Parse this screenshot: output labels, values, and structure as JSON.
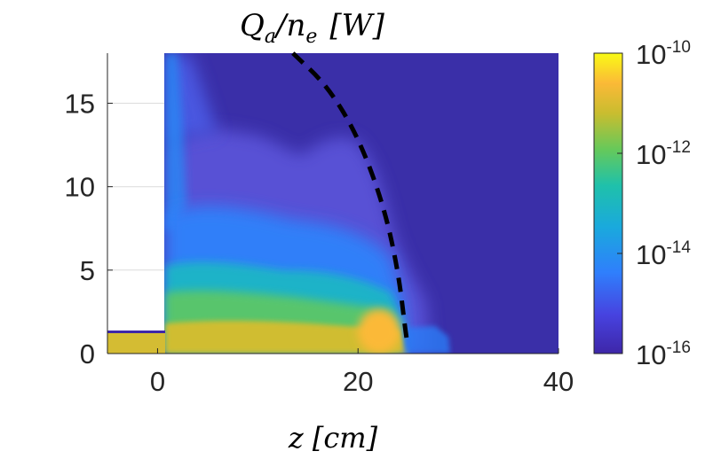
{
  "chart_data": {
    "type": "heatmap",
    "title": "Q_a/n_e [W]",
    "title_parts": {
      "q": "Q",
      "q_sub": "a",
      "slash": "/",
      "n": "n",
      "n_sub": "e",
      "unit": "[W]"
    },
    "xlabel": "z [cm]",
    "ylabel": "",
    "xlim": [
      -5,
      40
    ],
    "ylim": [
      0,
      18
    ],
    "x_ticks": [
      0,
      20,
      40
    ],
    "x_tick_labels": [
      "0",
      "20",
      "40"
    ],
    "y_ticks": [
      0,
      5,
      10,
      15
    ],
    "y_tick_labels": [
      "0",
      "5",
      "10",
      "15"
    ],
    "grid": true,
    "colormap": "parula",
    "colorbar": {
      "scale": "log",
      "range": [
        1e-16,
        1e-10
      ],
      "ticks": [
        1e-16,
        1e-14,
        1e-12,
        1e-10
      ],
      "tick_labels": [
        {
          "base": "10",
          "exp": "-16"
        },
        {
          "base": "10",
          "exp": "-14"
        },
        {
          "base": "10",
          "exp": "-12"
        },
        {
          "base": "10",
          "exp": "-10"
        }
      ]
    },
    "masked_region": {
      "z": [
        -5,
        0
      ],
      "r": [
        1.3,
        18
      ]
    },
    "boundary_curve": {
      "style": "dashed",
      "color": "#000000",
      "points": [
        [
          13.5,
          18
        ],
        [
          17,
          16
        ],
        [
          20,
          13
        ],
        [
          22.5,
          9
        ],
        [
          24,
          5
        ],
        [
          24.8,
          1
        ],
        [
          25,
          0.5
        ]
      ]
    },
    "regions": [
      {
        "label": "near-axis hot spot",
        "z": 21.5,
        "r": 1.0,
        "value": 1e-10
      },
      {
        "label": "axis band",
        "z": [
          0,
          25
        ],
        "r": [
          0,
          2
        ],
        "value": 3e-11
      },
      {
        "label": "mid plume",
        "z": [
          0,
          20
        ],
        "r": [
          2,
          6
        ],
        "value": 3e-13
      },
      {
        "label": "outer plume",
        "z": [
          0,
          22
        ],
        "r": [
          6,
          13
        ],
        "value": 2e-15
      },
      {
        "label": "background",
        "value": 1e-16
      }
    ],
    "colors": {
      "background": "#3a2fa8",
      "axis_text": "#262626",
      "colormap_stops": [
        "#3e26a8",
        "#4743e0",
        "#2f7ffc",
        "#1aa9dd",
        "#1fc1aa",
        "#66c95a",
        "#c9bd2f",
        "#fbb937",
        "#f9fb15"
      ]
    }
  }
}
